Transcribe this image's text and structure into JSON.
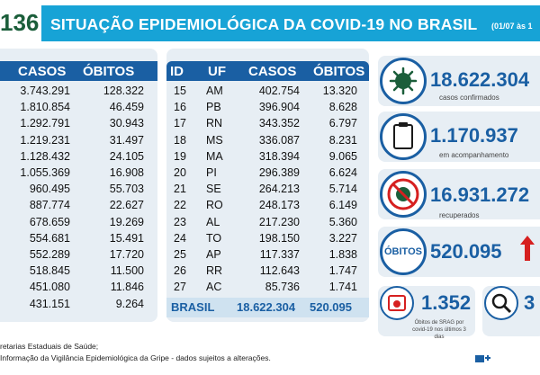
{
  "header": {
    "number": "136",
    "title": "SITUAÇÃO EPIDEMIOLÓGICA DA COVID-19 NO BRASIL",
    "date": "(01/07 às 1"
  },
  "left_table": {
    "headers": [
      "CASOS",
      "ÓBITOS"
    ],
    "rows": [
      [
        "3.743.291",
        "128.322"
      ],
      [
        "1.810.854",
        "46.459"
      ],
      [
        "1.292.791",
        "30.943"
      ],
      [
        "1.219.231",
        "31.497"
      ],
      [
        "1.128.432",
        "24.105"
      ],
      [
        "1.055.369",
        "16.908"
      ],
      [
        "960.495",
        "55.703"
      ],
      [
        "887.774",
        "22.627"
      ],
      [
        "678.659",
        "19.269"
      ],
      [
        "554.681",
        "15.491"
      ],
      [
        "552.289",
        "17.720"
      ],
      [
        "518.845",
        "11.500"
      ],
      [
        "451.080",
        "11.846"
      ],
      [
        "431.151",
        "9.264"
      ]
    ]
  },
  "right_table": {
    "headers": [
      "ID",
      "UF",
      "CASOS",
      "ÓBITOS"
    ],
    "rows": [
      [
        "15",
        "AM",
        "402.754",
        "13.320"
      ],
      [
        "16",
        "PB",
        "396.904",
        "8.628"
      ],
      [
        "17",
        "RN",
        "343.352",
        "6.797"
      ],
      [
        "18",
        "MS",
        "336.087",
        "8.231"
      ],
      [
        "19",
        "MA",
        "318.394",
        "9.065"
      ],
      [
        "20",
        "PI",
        "296.389",
        "6.624"
      ],
      [
        "21",
        "SE",
        "264.213",
        "5.714"
      ],
      [
        "22",
        "RO",
        "248.173",
        "6.149"
      ],
      [
        "23",
        "AL",
        "217.230",
        "5.360"
      ],
      [
        "24",
        "TO",
        "198.150",
        "3.227"
      ],
      [
        "25",
        "AP",
        "117.337",
        "1.838"
      ],
      [
        "26",
        "RR",
        "112.643",
        "1.747"
      ],
      [
        "27",
        "AC",
        "85.736",
        "1.741"
      ]
    ],
    "total": {
      "label": "BRASIL",
      "casos": "18.622.304",
      "obitos": "520.095"
    }
  },
  "stats": {
    "confirmados": {
      "value": "18.622.304",
      "label": "casos confirmados"
    },
    "acompanhamento": {
      "value": "1.170.937",
      "label": "em acompanhamento"
    },
    "recuperados": {
      "value": "16.931.272",
      "label": "recuperados"
    },
    "obitos": {
      "tag": "ÓBITOS",
      "value": "520.095"
    },
    "srag": {
      "value": "1.352",
      "label": "Óbitos de SRAG por covid-19 nos últimos 3 dias",
      "extra": "3"
    }
  },
  "footer": {
    "line1": "retarias Estaduais de Saúde;",
    "line2": "Informação da Vigilância Epidemiológica da Gripe - dados sujeitos a alterações."
  },
  "colors": {
    "header": "#17a3d6",
    "navy": "#1a5fa3",
    "panel": "#e7eef4",
    "arrow": "#d62020"
  }
}
